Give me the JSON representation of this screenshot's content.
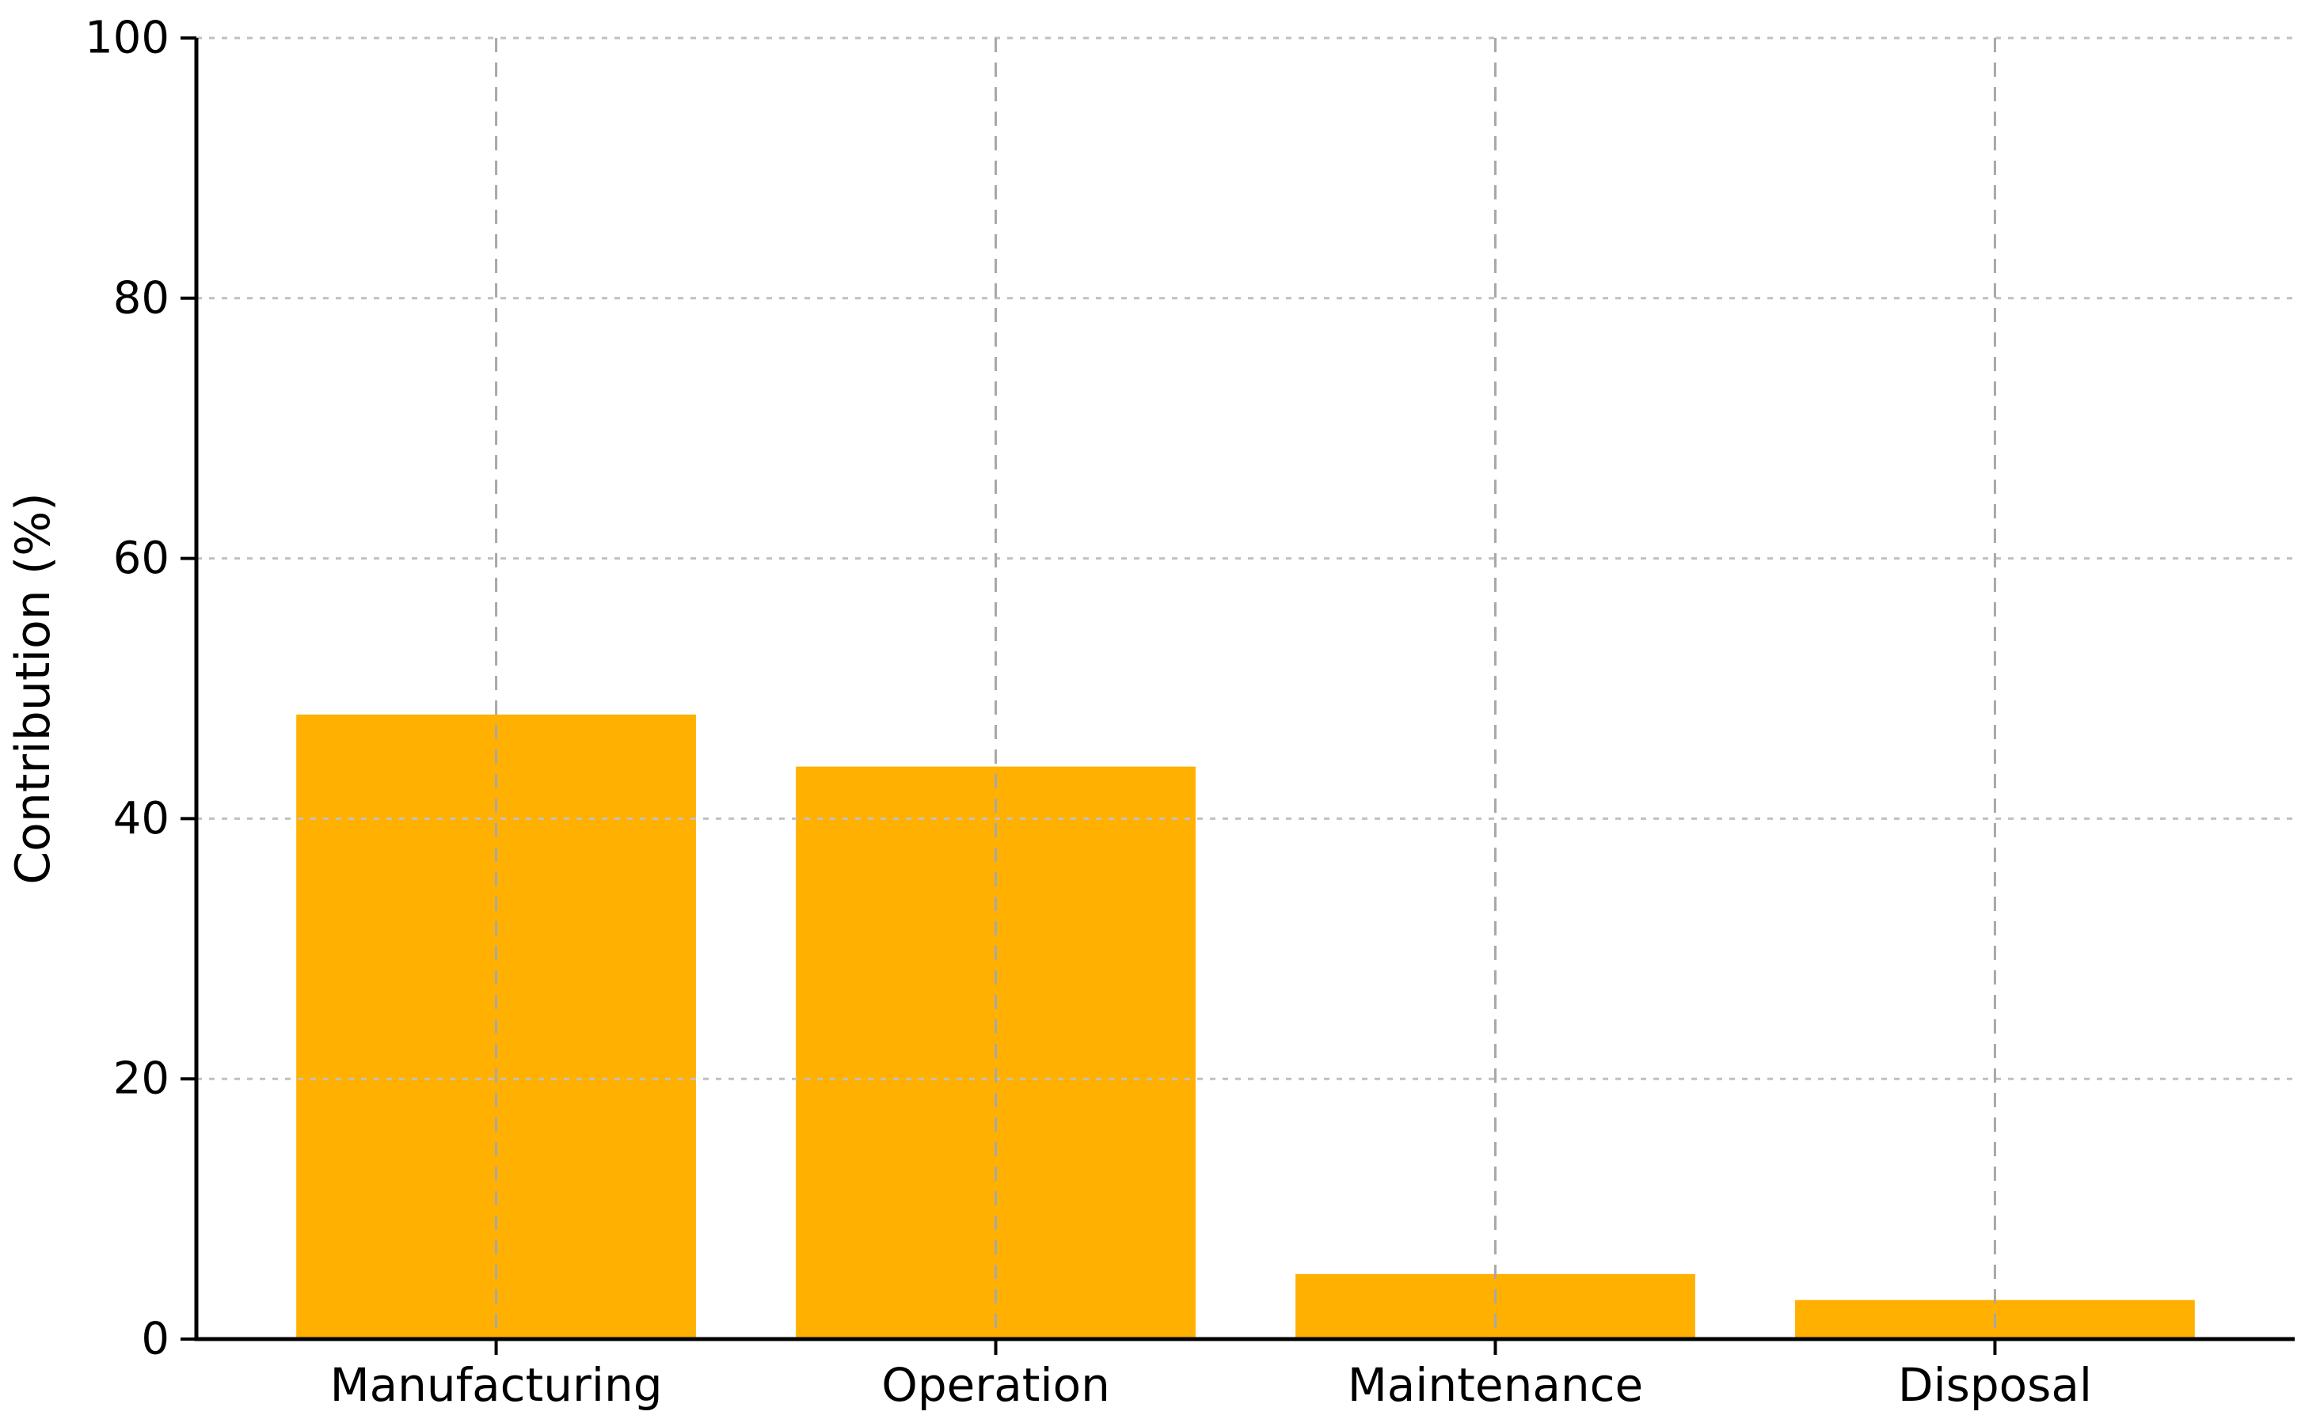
{
  "chart_data": {
    "type": "bar",
    "title": "",
    "categories": [
      "Manufacturing",
      "Operation",
      "Maintenance",
      "Disposal"
    ],
    "values": [
      48,
      44,
      5,
      3
    ],
    "xlabel": "",
    "ylabel": "Contribution (%)",
    "ylim": [
      0,
      100
    ],
    "yticks": [
      0,
      20,
      40,
      60,
      80,
      100
    ],
    "legend": null,
    "grid": "both-dashed-over-bars",
    "bar_color": "#FFB000",
    "axis_color": "#000000",
    "h_grid_color": "#c0c0c0",
    "v_grid_color": "#a8a8a8",
    "background": "#ffffff"
  }
}
